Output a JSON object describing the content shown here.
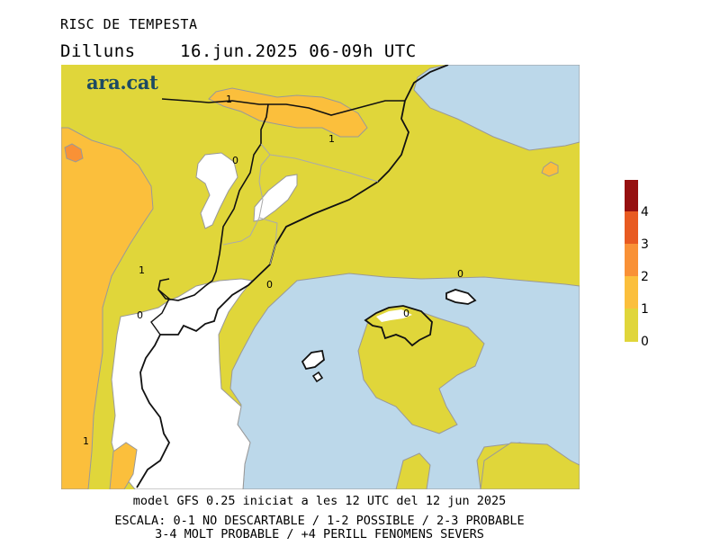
{
  "title": "RISC DE TEMPESTA",
  "subtitle": {
    "day": "Dilluns",
    "datetime": "16.jun.2025 06-09h UTC"
  },
  "brand": "ara.cat",
  "colors": {
    "sea": "#bcd8ea",
    "level_0": "#ffffff",
    "level_0_1": "#e0d63a",
    "level_1_2": "#fbbf3c",
    "level_2_3": "#f99136",
    "level_3_4": "#e85a21",
    "level_4_plus": "#961010",
    "coast": "#111111"
  },
  "legend": {
    "labels": [
      "0",
      "1",
      "2",
      "3",
      "4"
    ]
  },
  "contour_labels": [
    "1",
    "1",
    "0",
    "0",
    "0",
    "1",
    "0",
    "0",
    "1"
  ],
  "footer": {
    "model": "model GFS 0.25 iniciat a les 12 UTC del 12 jun 2025",
    "scale_line1": "ESCALA: 0-1 NO DESCARTABLE / 1-2 POSSIBLE / 2-3 PROBABLE",
    "scale_line2": "3-4 MOLT PROBABLE / +4 PERILL FENOMENS SEVERS"
  }
}
